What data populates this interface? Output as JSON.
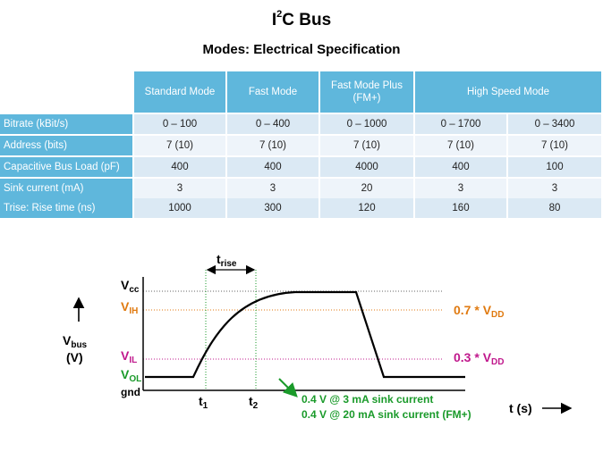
{
  "slide": {
    "title_prefix": "I",
    "title_sup": "2",
    "title_suffix": "C Bus",
    "subtitle": "Modes: Electrical  Specification"
  },
  "table": {
    "columns": [
      "Standard Mode",
      "Fast Mode",
      "Fast Mode Plus (FM+)",
      "High Speed Mode"
    ],
    "rows": [
      {
        "label": "Bitrate (kBit/s)",
        "cells": [
          "0 – 100",
          "0 – 400",
          "0 – 1000",
          "0 – 1700",
          "0 – 3400"
        ]
      },
      {
        "label": "Address (bits)",
        "cells": [
          "7 (10)",
          "7 (10)",
          "7 (10)",
          "7 (10)",
          "7 (10)"
        ]
      },
      {
        "label": "Capacitive Bus Load (pF)",
        "cells": [
          "400",
          "400",
          "4000",
          "400",
          "100"
        ]
      },
      {
        "label": "Sink current (mA)",
        "cells": [
          "3",
          "3",
          "20",
          "3",
          "3"
        ]
      },
      {
        "label": "Trise: Rise time (ns)",
        "cells": [
          "1000",
          "300",
          "120",
          "160",
          "80"
        ]
      }
    ]
  },
  "diagram": {
    "y_axis_label_main": "V",
    "y_axis_label_sub": "bus",
    "y_axis_unit": "(V)",
    "x_axis_label": "t (s)",
    "vcc_main": "V",
    "vcc_sub": "cc",
    "vih_main": "V",
    "vih_sub": "IH",
    "vil_main": "V",
    "vil_sub": "IL",
    "vol_main": "V",
    "vol_sub": "OL",
    "gnd": "gnd",
    "t1_main": "t",
    "t1_sub": "1",
    "t2_main": "t",
    "t2_sub": "2",
    "trise_main": "t",
    "trise_sub": "rise",
    "vih_level_prefix": "0.7 * V",
    "vih_level_sub": "DD",
    "vil_level_prefix": "0.3 * V",
    "vil_level_sub": "DD",
    "note_line1": "0.4 V @ 3 mA sink current",
    "note_line2": "0.4 V @ 20 mA sink current (FM+)",
    "colors": {
      "vih": "#e07a10",
      "vil": "#c0188c",
      "vol": "#1a9a2a",
      "header": "#5fb7dc"
    }
  }
}
